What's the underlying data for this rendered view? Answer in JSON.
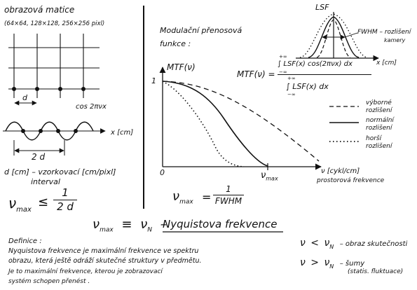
{
  "sampling": {
    "title": "obrazová matice",
    "sizes": "(64×64, 128×128, 256×256 pixl)",
    "grid_spacing_label": "d",
    "wave_label": "cos 2πνx",
    "axis_label": "x [cm]",
    "period_label": "2 d",
    "d_definition": "d [cm] – vzorkovací [cm/pixl]",
    "d_definition_line2": "interval",
    "nu_max_lhs": "ν",
    "nu_max_sub": "max",
    "nu_max_rel": "≤",
    "nu_max_num": "1",
    "nu_max_den": "2 d"
  },
  "mtf": {
    "heading_line1": "Modulační přenosová",
    "heading_line2": "funkce :",
    "y_axis": "MTF(ν)",
    "y_tick": "1",
    "origin": "0",
    "x_tick": "ν",
    "x_tick_sub": "max",
    "x_axis": "ν [cykl/cm]",
    "x_axis_line2": "prostorová frekvence",
    "eq_lhs": "ν",
    "eq_lhs_sub": "max",
    "eq_rel": "=",
    "eq_num": "1",
    "eq_den": "FWHM"
  },
  "lsf": {
    "y_axis": "LSF",
    "x_axis": "x [cm]",
    "fwhm_label": "FWHM – rozlišení",
    "fwhm_label2": "kamery"
  },
  "formula": {
    "lhs": "MTF(ν) =",
    "numerator": "∫ LSF(x) cos(2πνx) dx",
    "denominator": "∫ LSF(x) dx",
    "lim_upper": "+∞",
    "lim_lower": "−∞"
  },
  "legend": [
    {
      "label1": "výborné",
      "label2": "rozlišení",
      "style": "dashed"
    },
    {
      "label1": "normální",
      "label2": "rozlišení",
      "style": "solid"
    },
    {
      "label1": "horší",
      "label2": "rozlišení",
      "style": "dotted"
    }
  ],
  "nyquist": {
    "lhs": "ν",
    "lhs_sub": "max",
    "equiv": "≡",
    "n": "ν",
    "n_sub": "N",
    "dash": "–",
    "title": "Nyquistova frekvence"
  },
  "definition": {
    "heading": "Definice :",
    "line1": "Nyquistova frekvence je maximální frekvence ve spektru",
    "line2": "obrazu, která ještě odráží skutečné struktury v předmětu.",
    "line3": "Je to maximální frekvence, kterou je zobrazovací",
    "line4": "systém schopen přenést ."
  },
  "conditions": [
    {
      "lhs": "ν",
      "rel": "<",
      "rhs": "ν",
      "sub": "N",
      "text": "– obraz skutečnosti",
      "text2": ""
    },
    {
      "lhs": "ν",
      "rel": ">",
      "rhs": "ν",
      "sub": "N",
      "text": "– šumy",
      "text2": "(statis. fluktuace)"
    }
  ],
  "colors": {
    "ink": "#111111",
    "paper": "#ffffff"
  }
}
